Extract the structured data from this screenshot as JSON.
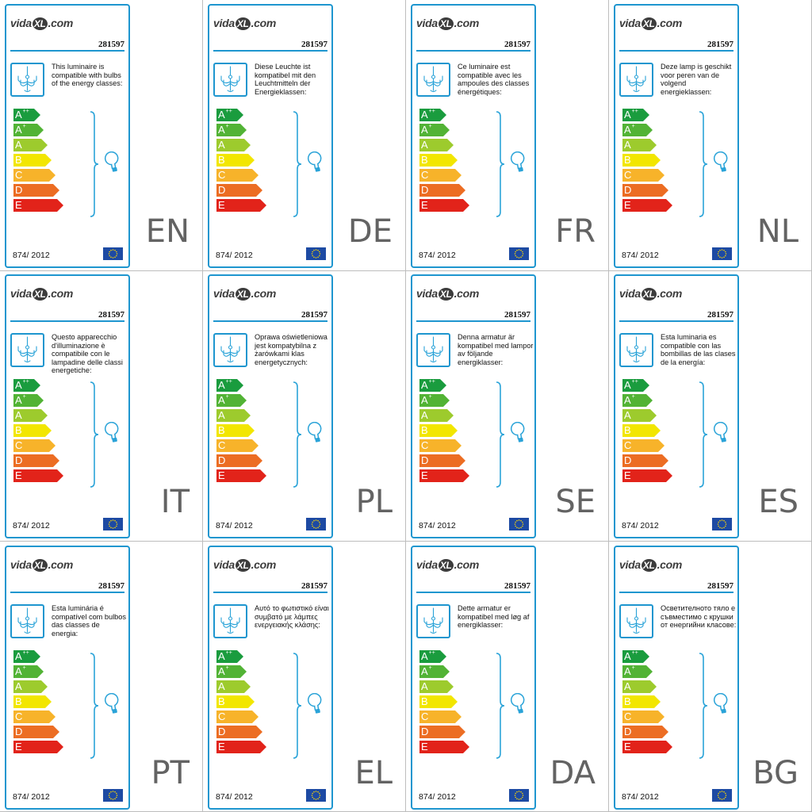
{
  "product_code": "281597",
  "regulation": "874/ 2012",
  "logo": {
    "pre": "vida",
    "mid": "XL",
    "post": ".com"
  },
  "energy_classes": [
    {
      "letter": "A",
      "sup": "++",
      "color": "#1a9c3e",
      "width": 34
    },
    {
      "letter": "A",
      "sup": "+",
      "color": "#52b335",
      "width": 38
    },
    {
      "letter": "A",
      "sup": "",
      "color": "#9dcb2d",
      "width": 43
    },
    {
      "letter": "B",
      "sup": "",
      "color": "#f2e600",
      "width": 48
    },
    {
      "letter": "C",
      "sup": "",
      "color": "#f7b32a",
      "width": 53
    },
    {
      "letter": "D",
      "sup": "",
      "color": "#ec6d23",
      "width": 58
    },
    {
      "letter": "E",
      "sup": "",
      "color": "#e2231a",
      "width": 63
    }
  ],
  "icons": {
    "luminaire": "chandelier-icon",
    "bulb": "light-bulb-icon",
    "flag": "eu-flag-icon"
  },
  "colors": {
    "accent": "#1e96cf",
    "grid_line": "#bdbdbd",
    "lang_text": "#636363"
  },
  "labels": [
    {
      "lang": "EN",
      "text": "This luminaire is compatible with bulbs of the energy classes:"
    },
    {
      "lang": "DE",
      "text": "Diese Leuchte ist kompatibel mit den Leuchtmitteln der Energieklassen:"
    },
    {
      "lang": "FR",
      "text": "Ce luminaire est compatible avec les ampoules des classes énergétiques:"
    },
    {
      "lang": "NL",
      "text": "Deze lamp is geschikt voor peren van de volgend energieklassen:"
    },
    {
      "lang": "IT",
      "text": "Questo apparecchio d'illuminazione è compatibile con le lampadine delle classi energetiche:"
    },
    {
      "lang": "PL",
      "text": "Oprawa oświetleniowa jest kompatybilna z żarówkami klas energetycznych:"
    },
    {
      "lang": "SE",
      "text": "Denna armatur är kompatibel med lampor av följande energiklasser:"
    },
    {
      "lang": "ES",
      "text": "Esta luminaria es compatible con las bombillas de las clases de la energía:"
    },
    {
      "lang": "PT",
      "text": "Esta luminária é compatível com bulbos das classes de energia:"
    },
    {
      "lang": "EL",
      "text": "Αυτό το φωτιστικό είναι συμβατό με λάμπες ενεργειακής κλάσης:"
    },
    {
      "lang": "DA",
      "text": "Dette armatur er kompatibel med løg af energiklasser:"
    },
    {
      "lang": "BG",
      "text": "Осветителното тяло е съвместимо с крушки от енергийни класове:"
    }
  ]
}
